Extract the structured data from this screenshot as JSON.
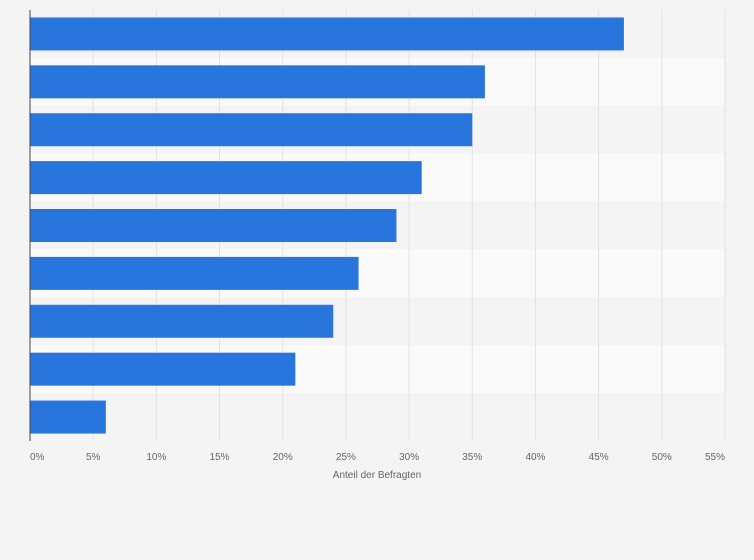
{
  "chart_data": {
    "type": "bar",
    "orientation": "horizontal",
    "categories": [
      "",
      "",
      "",
      "",
      "",
      "",
      "",
      "",
      ""
    ],
    "values": [
      47,
      36,
      35,
      31,
      29,
      26,
      24,
      21,
      6
    ],
    "xlabel": "Anteil der Befragten",
    "ylabel": "",
    "xlim": [
      0,
      55
    ],
    "xticks": [
      0,
      5,
      10,
      15,
      20,
      25,
      30,
      35,
      40,
      45,
      50,
      55
    ],
    "xtick_labels": [
      "0%",
      "5%",
      "10%",
      "15%",
      "20%",
      "25%",
      "30%",
      "35%",
      "40%",
      "45%",
      "50%",
      "55%"
    ],
    "grid": true,
    "legend": "none",
    "colors": {
      "bar": "#2876dd",
      "band_dark": "#f4f4f4",
      "band_light": "#fafafa",
      "grid": "#e2e2e2",
      "axis": "#444444",
      "text": "#666666"
    }
  }
}
